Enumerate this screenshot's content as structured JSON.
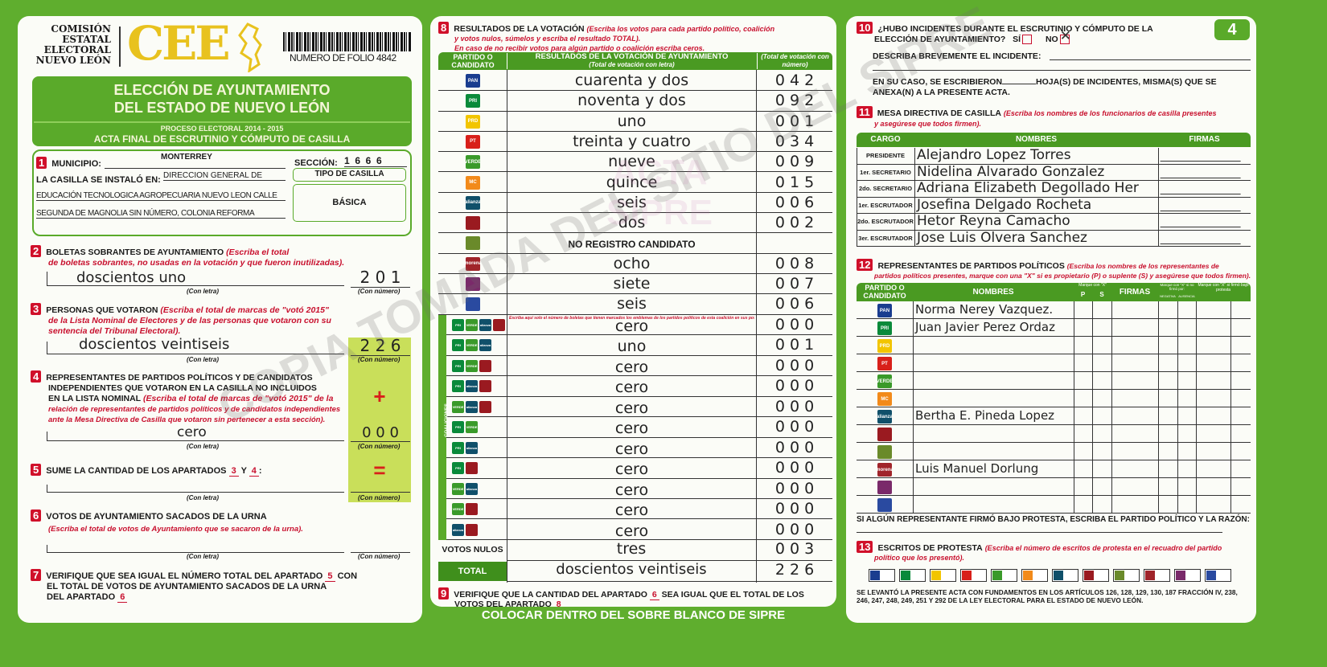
{
  "header": {
    "institution": [
      "COMISIÓN",
      "ESTATAL",
      "ELECTORAL",
      "NUEVO LEÓN"
    ],
    "logo_text": "CEE",
    "folio": "NUMERO DE FOLIO 4842",
    "title1": "ELECCIÓN DE AYUNTAMIENTO",
    "title2": "DEL ESTADO DE NUEVO LEÓN",
    "process": "PROCESO ELECTORAL  2014 - 2015",
    "acta": "ACTA FINAL DE ESCRUTINIO Y CÓMPUTO DE CASILLA",
    "page_number": "4"
  },
  "s1": {
    "n": "1",
    "municipio_label": "MUNICIPIO:",
    "municipio": "MONTERREY",
    "seccion_label": "SECCIÓN:",
    "seccion": "1  6  6  6",
    "instalo_label": "LA CASILLA SE INSTALÓ EN:",
    "address1": "DIRECCION GENERAL DE",
    "address2": "EDUCACIÓN TECNOLOGICA AGROPECUARIA NUEVO LEON CALLE",
    "address3": "SEGUNDA DE MAGNOLIA SIN NÚMERO, COLONIA REFORMA",
    "tipo_label": "TIPO DE CASILLA",
    "tipo": "BÁSICA"
  },
  "labels": {
    "con_letra": "(Con letra)",
    "con_numero": "(Con número)",
    "plus": "+",
    "equals": "="
  },
  "s2": {
    "n": "2",
    "title": "BOLETAS SOBRANTES DE AYUNTAMIENTO",
    "note1": "(Escriba el total",
    "note2": "de boletas sobrantes, no usadas en la votación y que fueron inutilizadas).",
    "letra": "doscientos uno",
    "numero": "2 0 1"
  },
  "s3": {
    "n": "3",
    "title": "PERSONAS QUE VOTARON",
    "note1": "(Escriba el total de marcas de \"votó 2015\"",
    "note2": "de la Lista Nominal de Electores y de las personas que votaron con su",
    "note3": "sentencia del Tribunal Electoral).",
    "letra": "doscientos veintiseis",
    "numero": "2 2 6"
  },
  "s4": {
    "n": "4",
    "title1": "REPRESENTANTES DE PARTIDOS POLÍTICOS Y DE CANDIDATOS",
    "title2": "INDEPENDIENTES QUE VOTARON EN LA CASILLA NO INCLUIDOS",
    "title3": "EN LA LISTA NOMINAL",
    "note1": "(Escriba el total de marcas de \"votó 2015\" de la",
    "note2": "relación de representantes de partidos políticos y de candidatos independientes",
    "note3": "ante la Mesa Directiva de Casilla que votaron sin pertenecer a esta sección).",
    "letra": "cero",
    "numero": "0 0 0"
  },
  "s5": {
    "n": "5",
    "title": "SUME LA CANTIDAD DE LOS APARTADOS",
    "a": "3",
    "y": "Y",
    "b": "4",
    "colon": ":"
  },
  "s6": {
    "n": "6",
    "title": "VOTOS DE AYUNTAMIENTO SACADOS DE LA URNA",
    "note": "(Escriba el total de votos de Ayuntamiento que se sacaron de la urna)."
  },
  "s7": {
    "n": "7",
    "t1": "VERIFIQUE QUE SEA IGUAL EL NÚMERO TOTAL DEL APARTADO",
    "a": "5",
    "t1b": "CON",
    "t2": "EL TOTAL DE VOTOS DE AYUNTAMIENTO SACADOS DE LA URNA",
    "t3": "DEL APARTADO",
    "b": "6"
  },
  "s8": {
    "n": "8",
    "title": "RESULTADOS DE LA VOTACIÓN",
    "note1": "(Escriba los votos para cada partido político, coalición",
    "note2": "y votos nulos, súmelos y escriba el resultado TOTAL).",
    "note3": "En caso de no recibir votos para algún partido o coalición escriba ceros.",
    "col_party": "PARTIDO O CANDIDATO",
    "col_letra": "RESULTADOS DE LA VOTACIÓN DE AYUNTAMIENTO",
    "col_letra_sub": "(Total de votación con letra)",
    "col_num": "(Total de votación con número)",
    "parties": [
      {
        "logo": "PAN",
        "color": "#1a3d8f",
        "letra": "cuarenta y dos",
        "numero": "0 4 2"
      },
      {
        "logo": "PRI",
        "color": "#0a8a3a",
        "letra": "noventa y dos",
        "numero": "0 9 2"
      },
      {
        "logo": "PRD",
        "color": "#f2c500",
        "letra": "uno",
        "numero": "0 0 1"
      },
      {
        "logo": "PT",
        "color": "#d8201a",
        "letra": "treinta y cuatro",
        "numero": "0 3 4"
      },
      {
        "logo": "VERDE",
        "color": "#3a9a2a",
        "letra": "nueve",
        "numero": "0 0 9"
      },
      {
        "logo": "MC",
        "color": "#f28a1a",
        "letra": "quince",
        "numero": "0 1 5"
      },
      {
        "logo": "alianza",
        "color": "#10506a",
        "letra": "seis",
        "numero": "0 0 6"
      },
      {
        "logo": "",
        "color": "#9a1a20",
        "letra": "dos",
        "numero": "0 0 2"
      },
      {
        "logo": "",
        "color": "#6a8a2a",
        "letra": "NO REGISTRO CANDIDATO",
        "numero": ""
      },
      {
        "logo": "morena",
        "color": "#a0242a",
        "letra": "ocho",
        "numero": "0 0 8"
      },
      {
        "logo": "",
        "color": "#7a2a6a",
        "letra": "siete",
        "numero": "0 0 7"
      },
      {
        "logo": "",
        "color": "#2a4aa0",
        "letra": "seis",
        "numero": "0 0 6"
      }
    ],
    "coalition_note": "Escriba aquí solo el número de boletas que tienen marcados los emblemas de los partidos políticos de esta coalición en sus posibles combinaciones",
    "coalition_label": "COALICIONES",
    "coalitions": [
      {
        "logos": [
          "PRI",
          "VERDE",
          "alianza",
          ""
        ],
        "letra": "cero",
        "numero": "0 0 0"
      },
      {
        "logos": [
          "PRI",
          "VERDE",
          "alianza"
        ],
        "letra": "uno",
        "numero": "0 0 1"
      },
      {
        "logos": [
          "PRI",
          "VERDE",
          ""
        ],
        "letra": "cero",
        "numero": "0 0 0"
      },
      {
        "logos": [
          "PRI",
          "alianza",
          ""
        ],
        "letra": "cero",
        "numero": "0 0 0"
      },
      {
        "logos": [
          "VERDE",
          "alianza",
          ""
        ],
        "letra": "cero",
        "numero": "0 0 0"
      },
      {
        "logos": [
          "PRI",
          "VERDE"
        ],
        "letra": "cero",
        "numero": "0 0 0"
      },
      {
        "logos": [
          "PRI",
          "alianza"
        ],
        "letra": "cero",
        "numero": "0 0 0"
      },
      {
        "logos": [
          "PRI",
          ""
        ],
        "letra": "cero",
        "numero": "0 0 0"
      },
      {
        "logos": [
          "VERDE",
          "alianza"
        ],
        "letra": "cero",
        "numero": "0 0 0"
      },
      {
        "logos": [
          "VERDE",
          ""
        ],
        "letra": "cero",
        "numero": "0 0 0"
      },
      {
        "logos": [
          "alianza",
          ""
        ],
        "letra": "cero",
        "numero": "0 0 0"
      }
    ],
    "nulos_label": "VOTOS NULOS",
    "nulos_letra": "tres",
    "nulos_numero": "0 0 3",
    "total_label": "TOTAL",
    "total_letra": "doscientos veintiseis",
    "total_numero": "2 2 6"
  },
  "s9": {
    "n": "9",
    "t1": "VERIFIQUE QUE LA CANTIDAD DEL APARTADO",
    "a": "6",
    "t1b": "SEA IGUAL QUE EL TOTAL DE LOS",
    "t2": "VOTOS DEL APARTADO",
    "b": "8"
  },
  "footer_banner": "COLOCAR DENTRO DEL SOBRE BLANCO DE SIPRE",
  "s10": {
    "n": "10",
    "q1": "¿HUBO INCIDENTES DURANTE EL ESCRUTINIO Y CÓMPUTO DE LA",
    "q2": "ELECCIÓN DE AYUNTAMIENTO?",
    "si": "SÍ",
    "no": "NO",
    "answer": "NO",
    "describe": "DESCRIBA BREVEMENTE EL INCIDENTE:",
    "caso1": "EN SU CASO, SE ESCRIBIERON",
    "caso1b": "HOJA(S) DE INCIDENTES, MISMA(S) QUE SE",
    "caso2": "ANEXA(N) A LA PRESENTE ACTA."
  },
  "s11": {
    "n": "11",
    "title": "MESA DIRECTIVA DE CASILLA",
    "note1": "(Escriba los nombres de los funcionarios de casilla presentes",
    "note2": "y asegúrese que todos firmen).",
    "col_cargo": "CARGO",
    "col_nombres": "NOMBRES",
    "col_firmas": "FIRMAS",
    "rows": [
      {
        "cargo": "PRESIDENTE",
        "nombre": "Alejandro Lopez Torres"
      },
      {
        "cargo": "1er. SECRETARIO",
        "nombre": "Nidelina Alvarado Gonzalez"
      },
      {
        "cargo": "2do. SECRETARIO",
        "nombre": "Adriana Elizabeth Degollado Her"
      },
      {
        "cargo": "1er. ESCRUTADOR",
        "nombre": "Josefina Delgado Rocheta"
      },
      {
        "cargo": "2do. ESCRUTADOR",
        "nombre": "Hetor Reyna Camacho"
      },
      {
        "cargo": "3er. ESCRUTADOR",
        "nombre": "Jose Luis Olvera Sanchez"
      }
    ]
  },
  "s12": {
    "n": "12",
    "title": "REPRESENTANTES DE PARTIDOS POLÍTICOS",
    "note1": "(Escriba los nombres de los representantes de",
    "note2": "partidos políticos presentes, marque con una \"X\" si es propietario (P) o suplente (S) y asegúrese que todos firmen).",
    "col_party": "PARTIDO O CANDIDATO",
    "col_nombres": "NOMBRES",
    "col_marque": "Marque con \"X\"",
    "col_p": "P",
    "col_s": "S",
    "col_firmas": "FIRMAS",
    "col_nofirmo": "Marque con \"X\" si no firmó por:",
    "col_negativa": "NEGATIVA",
    "col_ausencia": "AUSENCIA",
    "col_protesta": "Marque con \"X\" si firmó bajo protesta",
    "rows": [
      {
        "logo": "PAN",
        "color": "#1a3d8f",
        "nombre": "Norma Nerey Vazquez."
      },
      {
        "logo": "PRI",
        "color": "#0a8a3a",
        "nombre": "Juan Javier Perez Ordaz"
      },
      {
        "logo": "PRD",
        "color": "#f2c500",
        "nombre": ""
      },
      {
        "logo": "PT",
        "color": "#d8201a",
        "nombre": ""
      },
      {
        "logo": "VERDE",
        "color": "#3a9a2a",
        "nombre": ""
      },
      {
        "logo": "MC",
        "color": "#f28a1a",
        "nombre": ""
      },
      {
        "logo": "alianza",
        "color": "#10506a",
        "nombre": "Bertha E. Pineda Lopez"
      },
      {
        "logo": "",
        "color": "#9a1a20",
        "nombre": ""
      },
      {
        "logo": "",
        "color": "#6a8a2a",
        "nombre": ""
      },
      {
        "logo": "morena",
        "color": "#a0242a",
        "nombre": "Luis Manuel Dorlung"
      },
      {
        "logo": "",
        "color": "#7a2a6a",
        "nombre": ""
      },
      {
        "logo": "",
        "color": "#2a4aa0",
        "nombre": ""
      }
    ],
    "protesta": "SI ALGÚN REPRESENTANTE FIRMÓ BAJO PROTESTA, ESCRIBA EL PARTIDO POLÍTICO Y LA RAZÓN:"
  },
  "s13": {
    "n": "13",
    "title": "ESCRITOS DE PROTESTA",
    "note1": "(Escriba el número de escritos de protesta en el recuadro del partido",
    "note2": "político que los presentó).",
    "logos": [
      "#1a3d8f",
      "#0a8a3a",
      "#f2c500",
      "#d8201a",
      "#3a9a2a",
      "#f28a1a",
      "#10506a",
      "#9a1a20",
      "#6a8a2a",
      "#a0242a",
      "#7a2a6a",
      "#2a4aa0"
    ],
    "legal1": "SE LEVANTÓ LA PRESENTE ACTA CON FUNDAMENTOS EN LOS ARTÍCULOS 126, 128, 129, 130, 187 FRACCIÓN IV, 238,",
    "legal2": "246, 247, 248, 249, 251 Y 292 DE LA LEY ELECTORAL PARA EL ESTADO DE NUEVO LEÓN."
  },
  "watermark": "COPIA TOMADA DEL SITIO DEL SIPRE",
  "watermark2": "ACTA SIPRE",
  "colors": {
    "green": "#5fae2e",
    "dark_green": "#4a9a22",
    "red": "#c8102e",
    "yellow": "#e8c21e",
    "lime": "#c9df5a"
  }
}
